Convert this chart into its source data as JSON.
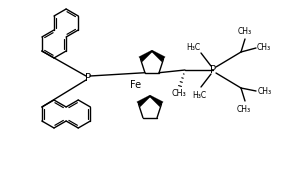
{
  "bg_color": "#ffffff",
  "line_color": "#000000",
  "lw": 1.0,
  "figsize": [
    2.89,
    1.76
  ],
  "dpi": 100,
  "xlim": [
    0,
    289
  ],
  "ylim": [
    0,
    176
  ]
}
